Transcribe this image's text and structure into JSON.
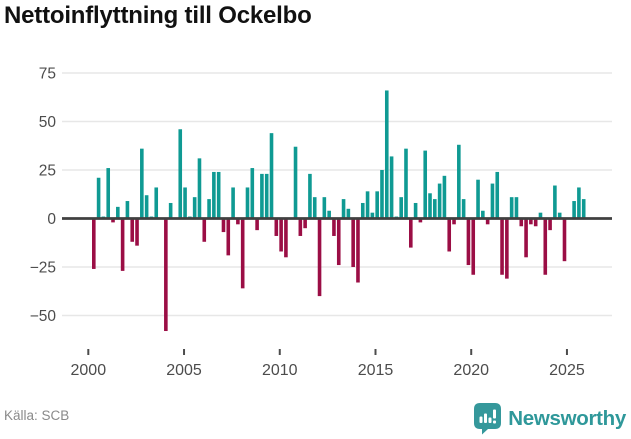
{
  "title": "Nettoinflyttning till Ockelbo",
  "source": "Källa: SCB",
  "logo": {
    "brand": "Newsworthy"
  },
  "colors": {
    "positive": "#0f9a93",
    "negative": "#9b0e45",
    "grid": "#e7e7e7",
    "zero": "#404040",
    "axis_text": "#4c4c4c",
    "title": "#111111",
    "source_text": "#8a8a8a",
    "brand": "#2f989a"
  },
  "chart_data": {
    "type": "bar",
    "title": "Nettoinflyttning till Ockelbo",
    "series_name": "Nettoinflyttning per kvartal",
    "frequency": "quarterly",
    "start": {
      "year": 2000,
      "quarter": 1
    },
    "end": {
      "year": 2025,
      "quarter": 3
    },
    "xlabel": "",
    "ylabel": "",
    "ylim": [
      -62,
      80
    ],
    "grid": "horizontal",
    "legend": false,
    "x_tick_labels": [
      "2000",
      "2005",
      "2010",
      "2015",
      "2020",
      "2025"
    ],
    "y_ticks": [
      75,
      50,
      25,
      0,
      -25,
      -50
    ],
    "y_tick_labels": [
      "75",
      "50",
      "25",
      "0",
      "−25",
      "−50"
    ],
    "values": [
      -26,
      21,
      1,
      26,
      -2,
      6,
      -27,
      9,
      -12,
      -14,
      36,
      12,
      1,
      16,
      0,
      -58,
      8,
      0,
      46,
      16,
      1,
      11,
      31,
      -12,
      10,
      24,
      24,
      -7,
      -19,
      16,
      -3,
      -36,
      16,
      26,
      -6,
      23,
      23,
      44,
      -9,
      -17,
      -20,
      0,
      37,
      -9,
      -5,
      23,
      11,
      -40,
      11,
      4,
      -9,
      -24,
      10,
      5,
      -25,
      -33,
      8,
      14,
      3,
      14,
      25,
      66,
      32,
      1,
      11,
      36,
      -15,
      8,
      -2,
      35,
      13,
      10,
      18,
      22,
      -17,
      -3,
      38,
      10,
      -24,
      -29,
      20,
      4,
      -3,
      18,
      24,
      -29,
      -31,
      11,
      11,
      -4,
      -20,
      -3,
      -4,
      3,
      -29,
      -6,
      17,
      3,
      -22,
      0,
      9,
      16,
      10
    ]
  }
}
